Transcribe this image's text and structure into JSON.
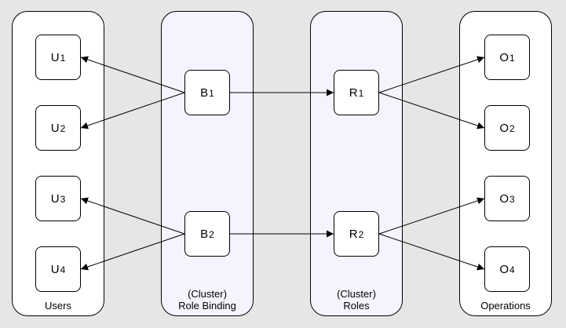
{
  "lanes": {
    "users": {
      "label": "Users"
    },
    "bindings": {
      "label_line1": "(Cluster)",
      "label_line2": "Role Binding"
    },
    "roles": {
      "label_line1": "(Cluster)",
      "label_line2": "Roles"
    },
    "operations": {
      "label": "Operations"
    }
  },
  "nodes": {
    "u1": {
      "letter": "U",
      "index": "1"
    },
    "u2": {
      "letter": "U",
      "index": "2"
    },
    "u3": {
      "letter": "U",
      "index": "3"
    },
    "u4": {
      "letter": "U",
      "index": "4"
    },
    "b1": {
      "letter": "B",
      "index": "1"
    },
    "b2": {
      "letter": "B",
      "index": "2"
    },
    "r1": {
      "letter": "R",
      "index": "1"
    },
    "r2": {
      "letter": "R",
      "index": "2"
    },
    "o1": {
      "letter": "O",
      "index": "1"
    },
    "o2": {
      "letter": "O",
      "index": "2"
    },
    "o3": {
      "letter": "O",
      "index": "3"
    },
    "o4": {
      "letter": "O",
      "index": "4"
    }
  },
  "edges": [
    {
      "from": "b1",
      "to": "u1"
    },
    {
      "from": "b1",
      "to": "u2"
    },
    {
      "from": "b1",
      "to": "r1"
    },
    {
      "from": "b2",
      "to": "u3"
    },
    {
      "from": "b2",
      "to": "u4"
    },
    {
      "from": "b2",
      "to": "r2"
    },
    {
      "from": "r1",
      "to": "o1"
    },
    {
      "from": "r1",
      "to": "o2"
    },
    {
      "from": "r2",
      "to": "o3"
    },
    {
      "from": "r2",
      "to": "o4"
    }
  ],
  "colors": {
    "lane_users_ops": "#ffffff",
    "lane_bind_roles": "#f4f4ff",
    "stroke": "#000000"
  }
}
